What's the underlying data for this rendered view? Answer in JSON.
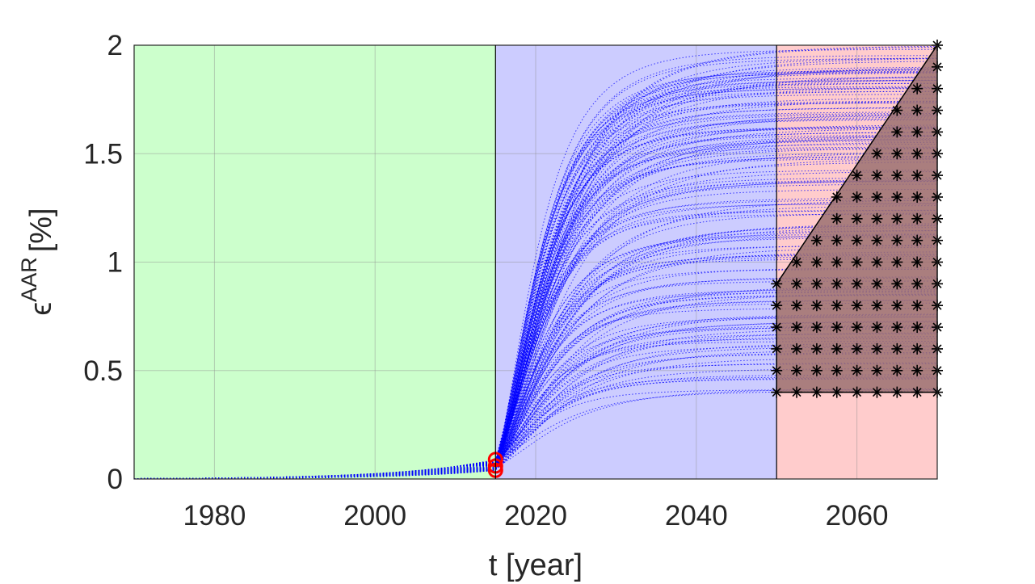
{
  "chart_data": {
    "type": "line",
    "xlabel": "t [year]",
    "ylabel": {
      "symbol": "ϵ",
      "superscript": "AAR",
      "unit": "[%]"
    },
    "xlim": [
      1970,
      2070
    ],
    "ylim": [
      0,
      2
    ],
    "x_ticks": [
      "1980",
      "2000",
      "2020",
      "2040",
      "2060"
    ],
    "y_ticks": [
      "0",
      "0.5",
      "1",
      "1.5",
      "2"
    ],
    "grid": true,
    "regions": [
      {
        "x_start": 1970,
        "x_end": 2015,
        "color": "#ccffcc"
      },
      {
        "x_start": 2015,
        "x_end": 2050,
        "color": "#ccccff"
      },
      {
        "x_start": 2050,
        "x_end": 2070,
        "color": "#ffcccc"
      }
    ],
    "trajectories": {
      "color": "#0000ff",
      "style": "dotted",
      "start_year": 1970,
      "calibration_year": 2015,
      "calibration_values": [
        0.04,
        0.09
      ],
      "target_year": 2070,
      "target_range": [
        0.4,
        2.0
      ]
    },
    "calibration_markers": {
      "color": "#ff0000",
      "shape": "circle",
      "points": [
        {
          "x": 2015,
          "y": 0.04
        },
        {
          "x": 2015,
          "y": 0.06
        },
        {
          "x": 2015,
          "y": 0.09
        }
      ]
    },
    "feasible_region": {
      "fill": "#9b7070",
      "edge": "#000000",
      "vertices": [
        [
          2050,
          0.9
        ],
        [
          2070,
          2.0
        ],
        [
          2070,
          0.4
        ],
        [
          2050,
          0.4
        ]
      ]
    },
    "grid_points": {
      "marker": "asterisk",
      "color": "#000000",
      "x": [
        2050,
        2052.5,
        2055,
        2057.5,
        2060,
        2062.5,
        2065,
        2067.5,
        2070
      ],
      "y_min": 0.4,
      "y_step": 0.1,
      "y_max": 2.0,
      "boundary": {
        "from": [
          2050,
          0.9
        ],
        "to": [
          2070,
          2.0
        ]
      }
    }
  }
}
